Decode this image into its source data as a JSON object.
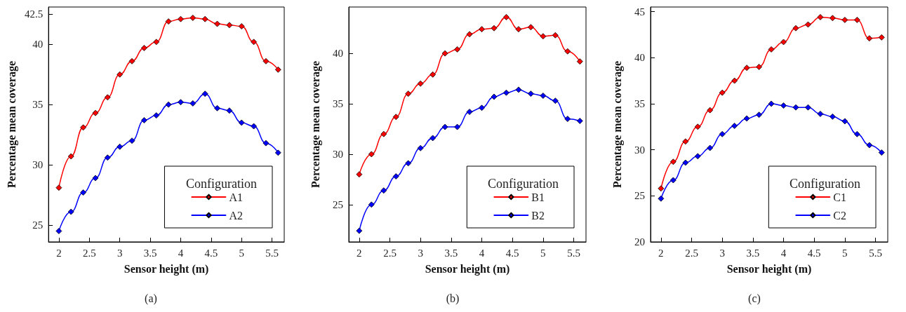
{
  "chart_data": [
    {
      "type": "line",
      "xlabel": "Sensor height (m)",
      "ylabel": "Percentage mean coverage",
      "legend_title": "Configuration",
      "annotations": [
        "(a)"
      ],
      "legend": "bottom right",
      "marker": "diamond",
      "xlim": [
        1.83,
        5.7
      ],
      "ylim": [
        23.6,
        43.1
      ],
      "xticks": [
        2,
        2.5,
        3,
        3.5,
        4,
        4.5,
        5,
        5.5
      ],
      "yticks": [
        25,
        30,
        35,
        40,
        42.5
      ],
      "x": [
        2,
        2.2,
        2.4,
        2.6,
        2.8,
        3,
        3.2,
        3.4,
        3.6,
        3.8,
        4,
        4.2,
        4.4,
        4.6,
        4.8,
        5,
        5.2,
        5.4,
        5.6
      ],
      "series": [
        {
          "name": "A1",
          "color": "#ff0000",
          "values": [
            28.1,
            30.7,
            33.1,
            34.3,
            35.6,
            37.5,
            38.6,
            39.7,
            40.2,
            41.9,
            42.1,
            42.2,
            42.1,
            41.7,
            41.6,
            41.5,
            40.2,
            38.6,
            37.9
          ]
        },
        {
          "name": "A2",
          "color": "#0000ff",
          "values": [
            24.5,
            26.1,
            27.7,
            28.9,
            30.6,
            31.5,
            32.0,
            33.7,
            34.1,
            35.0,
            35.2,
            35.1,
            35.9,
            34.7,
            34.5,
            33.5,
            33.2,
            31.8,
            31.0
          ]
        }
      ]
    },
    {
      "type": "line",
      "xlabel": "Sensor height (m)",
      "ylabel": "Percentage mean coverage",
      "legend_title": "Configuration",
      "annotations": [
        "(b)"
      ],
      "legend": "bottom right",
      "marker": "diamond",
      "xlim": [
        1.83,
        5.7
      ],
      "ylim": [
        21.3,
        44.6
      ],
      "xticks": [
        2,
        2.5,
        3,
        3.5,
        4,
        4.5,
        5,
        5.5
      ],
      "yticks": [
        25,
        30,
        35,
        40
      ],
      "x": [
        2,
        2.2,
        2.4,
        2.6,
        2.8,
        3,
        3.2,
        3.4,
        3.6,
        3.8,
        4,
        4.2,
        4.4,
        4.6,
        4.8,
        5,
        5.2,
        5.4,
        5.6
      ],
      "series": [
        {
          "name": "B1",
          "color": "#ff0000",
          "values": [
            28.0,
            30.0,
            32.0,
            33.7,
            36.0,
            37.0,
            37.9,
            40.0,
            40.4,
            41.9,
            42.4,
            42.5,
            43.6,
            42.4,
            42.6,
            41.7,
            41.8,
            40.2,
            39.2
          ]
        },
        {
          "name": "B2",
          "color": "#0000ff",
          "values": [
            22.4,
            25.0,
            26.4,
            27.8,
            29.1,
            30.6,
            31.6,
            32.7,
            32.7,
            34.2,
            34.6,
            35.7,
            36.1,
            36.4,
            36.0,
            35.8,
            35.3,
            33.5,
            33.3
          ]
        }
      ]
    },
    {
      "type": "line",
      "xlabel": "Sensor height (m)",
      "ylabel": "Percentage mean coverage",
      "legend_title": "Configuration",
      "annotations": [
        "(c)"
      ],
      "legend": "bottom right",
      "marker": "diamond",
      "xlim": [
        1.83,
        5.7
      ],
      "ylim": [
        20,
        45.5
      ],
      "xticks": [
        2,
        2.5,
        3,
        3.5,
        4,
        4.5,
        5,
        5.5
      ],
      "yticks": [
        20,
        25,
        30,
        35,
        40,
        45
      ],
      "x": [
        2,
        2.2,
        2.4,
        2.6,
        2.8,
        3,
        3.2,
        3.4,
        3.6,
        3.8,
        4,
        4.2,
        4.4,
        4.6,
        4.8,
        5,
        5.2,
        5.4,
        5.6
      ],
      "series": [
        {
          "name": "C1",
          "color": "#ff0000",
          "values": [
            25.8,
            28.7,
            30.9,
            32.5,
            34.3,
            36.2,
            37.5,
            38.9,
            39.0,
            40.9,
            41.7,
            43.2,
            43.6,
            44.4,
            44.3,
            44.1,
            44.1,
            42.1,
            42.2
          ]
        },
        {
          "name": "C2",
          "color": "#0000ff",
          "values": [
            24.7,
            26.7,
            28.6,
            29.3,
            30.2,
            31.7,
            32.6,
            33.4,
            33.8,
            35.0,
            34.8,
            34.6,
            34.6,
            33.9,
            33.6,
            33.1,
            31.7,
            30.5,
            29.7
          ]
        }
      ]
    }
  ]
}
